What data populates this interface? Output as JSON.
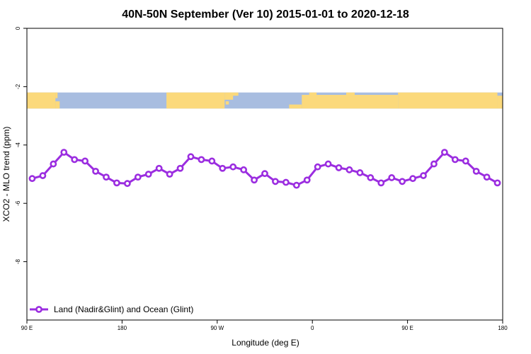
{
  "chart_data": {
    "type": "line",
    "title": "40N-50N September (Ver 10)   2015-01-01 to 2020-12-18",
    "xlabel": "Longitude (deg E)",
    "ylabel": "XCO2 - MLO trend (ppm)",
    "xlim": [
      90,
      540
    ],
    "ylim": [
      -10,
      0
    ],
    "x_ticks": [
      {
        "value": 90,
        "label": "90 E"
      },
      {
        "value": 180,
        "label": "180"
      },
      {
        "value": 270,
        "label": "90 W"
      },
      {
        "value": 360,
        "label": "0"
      },
      {
        "value": 450,
        "label": "90 E"
      },
      {
        "value": 540,
        "label": "180"
      }
    ],
    "y_ticks": [
      {
        "value": 0,
        "label": "0"
      },
      {
        "value": -2,
        "label": "-2"
      },
      {
        "value": -4,
        "label": "-4"
      },
      {
        "value": -6,
        "label": "-6"
      },
      {
        "value": -8,
        "label": "-8"
      }
    ],
    "legend_position": "bottom-left",
    "grid": false,
    "map_strip": {
      "y_range": [
        -2.75,
        -2.2
      ],
      "land_color": "#fbd97b",
      "ocean_color": "#a8bde0"
    },
    "series": [
      {
        "name": "Land (Nadir&Glint) and Ocean (Glint)",
        "color": "#9b2de0",
        "x": [
          95,
          105,
          115,
          125,
          135,
          145,
          155,
          165,
          175,
          185,
          195,
          205,
          215,
          225,
          235,
          245,
          255,
          265,
          275,
          285,
          295,
          305,
          315,
          325,
          335,
          345,
          355,
          365,
          375,
          385,
          395,
          405,
          415,
          425,
          435,
          445,
          455,
          465,
          475,
          485,
          495,
          505,
          515,
          525,
          535
        ],
        "values": [
          -5.15,
          -5.05,
          -4.65,
          -4.25,
          -4.5,
          -4.55,
          -4.9,
          -5.1,
          -5.3,
          -5.32,
          -5.1,
          -5.0,
          -4.8,
          -5.0,
          -4.8,
          -4.4,
          -4.5,
          -4.55,
          -4.8,
          -4.75,
          -4.85,
          -5.2,
          -4.98,
          -5.25,
          -5.28,
          -5.38,
          -5.2,
          -4.75,
          -4.65,
          -4.78,
          -4.85,
          -4.95,
          -5.12,
          -5.3,
          -5.12,
          -5.25,
          -5.15,
          -5.05,
          -4.65,
          -4.25,
          -4.5,
          -4.55,
          -4.9,
          -5.1,
          -5.3
        ]
      }
    ]
  }
}
